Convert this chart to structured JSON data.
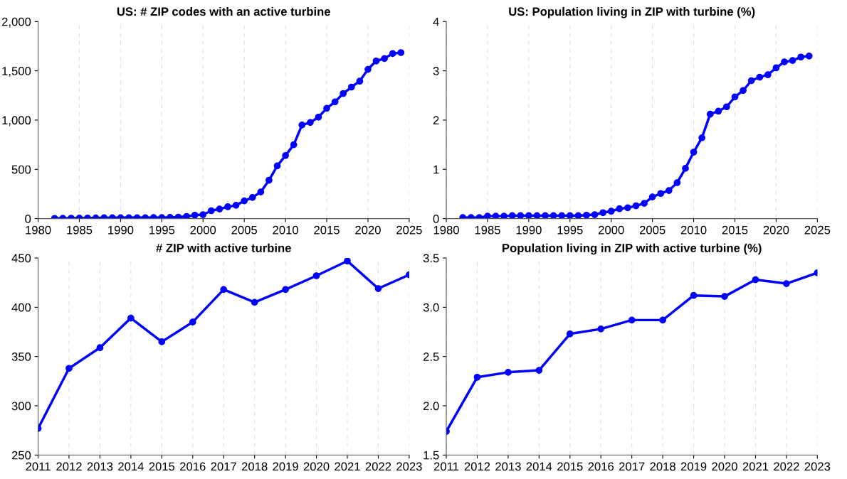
{
  "chart_data": [
    {
      "type": "line",
      "title": "US: # ZIP codes with an active turbine",
      "x": [
        1982,
        1983,
        1984,
        1985,
        1986,
        1987,
        1988,
        1989,
        1990,
        1991,
        1992,
        1993,
        1994,
        1995,
        1996,
        1997,
        1998,
        1999,
        2000,
        2001,
        2002,
        2003,
        2004,
        2005,
        2006,
        2007,
        2008,
        2009,
        2010,
        2011,
        2012,
        2013,
        2014,
        2015,
        2016,
        2017,
        2018,
        2019,
        2020,
        2021,
        2022,
        2023,
        2024
      ],
      "series": [
        {
          "color": "#0000ff",
          "values": [
            2,
            3,
            4,
            5,
            6,
            7,
            8,
            8,
            9,
            9,
            9,
            9,
            10,
            10,
            12,
            15,
            22,
            35,
            40,
            80,
            97,
            120,
            135,
            180,
            215,
            270,
            390,
            535,
            640,
            750,
            950,
            975,
            1030,
            1120,
            1185,
            1270,
            1335,
            1395,
            1515,
            1600,
            1625,
            1675,
            1685
          ]
        }
      ],
      "xlim": [
        1980,
        2025
      ],
      "xticks": [
        1980,
        1985,
        1990,
        1995,
        2000,
        2005,
        2010,
        2015,
        2020,
        2025
      ],
      "ylim": [
        0,
        2000
      ],
      "yticks": [
        {
          "value": 0,
          "label": "0"
        },
        {
          "value": 500,
          "label": "500"
        },
        {
          "value": 1000,
          "label": "1,000"
        },
        {
          "value": 1500,
          "label": "1,500"
        },
        {
          "value": 2000,
          "label": "2,000"
        }
      ],
      "grid": "x",
      "marker": "circle",
      "line_style": "solid"
    },
    {
      "type": "line",
      "title": "US: Population living in ZIP with turbine (%)",
      "x": [
        1982,
        1983,
        1984,
        1985,
        1986,
        1987,
        1988,
        1989,
        1990,
        1991,
        1992,
        1993,
        1994,
        1995,
        1996,
        1997,
        1998,
        1999,
        2000,
        2001,
        2002,
        2003,
        2004,
        2005,
        2006,
        2007,
        2008,
        2009,
        2010,
        2011,
        2012,
        2013,
        2014,
        2015,
        2016,
        2017,
        2018,
        2019,
        2020,
        2021,
        2022,
        2023,
        2024
      ],
      "series": [
        {
          "color": "#0000ff",
          "values": [
            0.02,
            0.02,
            0.02,
            0.05,
            0.05,
            0.05,
            0.06,
            0.06,
            0.06,
            0.06,
            0.06,
            0.06,
            0.06,
            0.06,
            0.06,
            0.07,
            0.08,
            0.12,
            0.15,
            0.2,
            0.22,
            0.26,
            0.31,
            0.44,
            0.51,
            0.57,
            0.73,
            1.02,
            1.35,
            1.64,
            2.12,
            2.18,
            2.27,
            2.47,
            2.6,
            2.8,
            2.87,
            2.92,
            3.06,
            3.18,
            3.21,
            3.28,
            3.3
          ]
        }
      ],
      "xlim": [
        1980,
        2025
      ],
      "xticks": [
        1980,
        1985,
        1990,
        1995,
        2000,
        2005,
        2010,
        2015,
        2020,
        2025
      ],
      "ylim": [
        0,
        4
      ],
      "yticks": [
        0,
        1,
        2,
        3,
        4
      ],
      "grid": "x",
      "marker": "circle",
      "line_style": "solid"
    },
    {
      "type": "line",
      "title": "# ZIP with active turbine",
      "x": [
        2011,
        2012,
        2013,
        2014,
        2015,
        2016,
        2017,
        2018,
        2019,
        2020,
        2021,
        2022,
        2023
      ],
      "series": [
        {
          "color": "#0000ff",
          "values": [
            277,
            338,
            359,
            389,
            365,
            385,
            418,
            405,
            418,
            432,
            447,
            419,
            433
          ]
        }
      ],
      "xlim": [
        2011,
        2023
      ],
      "xticks": [
        2011,
        2012,
        2013,
        2014,
        2015,
        2016,
        2017,
        2018,
        2019,
        2020,
        2021,
        2022,
        2023
      ],
      "ylim": [
        250,
        450
      ],
      "yticks": [
        250,
        300,
        350,
        400,
        450
      ],
      "grid": "x",
      "marker": "circle",
      "line_style": "solid"
    },
    {
      "type": "line",
      "title": "Population living in ZIP with active turbine (%)",
      "x": [
        2011,
        2012,
        2013,
        2014,
        2015,
        2016,
        2017,
        2018,
        2019,
        2020,
        2021,
        2022,
        2023
      ],
      "series": [
        {
          "color": "#0000ff",
          "values": [
            1.74,
            2.29,
            2.34,
            2.36,
            2.73,
            2.78,
            2.87,
            2.87,
            3.12,
            3.11,
            3.28,
            3.24,
            3.35
          ]
        }
      ],
      "xlim": [
        2011,
        2023
      ],
      "xticks": [
        2011,
        2012,
        2013,
        2014,
        2015,
        2016,
        2017,
        2018,
        2019,
        2020,
        2021,
        2022,
        2023
      ],
      "ylim": [
        1.5,
        3.5
      ],
      "yticks": [
        {
          "value": 1.5,
          "label": "1.5"
        },
        {
          "value": 2.0,
          "label": "2.0"
        },
        {
          "value": 2.5,
          "label": "2.5"
        },
        {
          "value": 3.0,
          "label": "3.0"
        },
        {
          "value": 3.5,
          "label": "3.5"
        }
      ],
      "grid": "x",
      "marker": "circle",
      "line_style": "solid"
    }
  ]
}
